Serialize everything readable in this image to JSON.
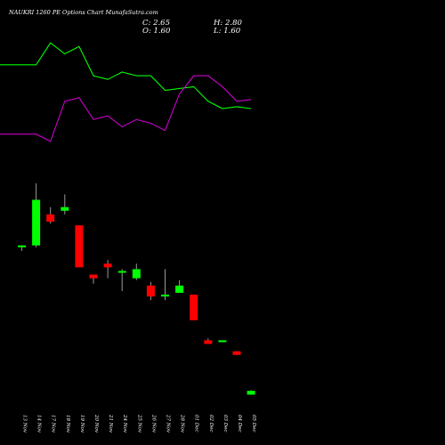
{
  "chart_data": {
    "type": "candlestick",
    "title": "NAUKRI 1260  PE Options  Chart MunafaSutra.com",
    "ohlc_readout": {
      "C": "C: 2.65",
      "O": "O: 1.60",
      "H": "H: 2.80",
      "L": "L: 1.60"
    },
    "categories": [
      "13 Nov",
      "14 Nov",
      "17 Nov",
      "18 Nov",
      "19 Nov",
      "20 Nov",
      "21 Nov",
      "24 Nov",
      "25 Nov",
      "26 Nov",
      "27 Nov",
      "28 Nov",
      "01 Dec",
      "02 Dec",
      "03 Dec",
      "04 Dec",
      "05 Dec"
    ],
    "candles": [
      {
        "o": 42.0,
        "h": 42.5,
        "l": 41.0,
        "c": 42.5
      },
      {
        "o": 42.5,
        "h": 59.5,
        "l": 42.0,
        "c": 55.0
      },
      {
        "o": 51.0,
        "h": 53.0,
        "l": 48.5,
        "c": 49.0
      },
      {
        "o": 52.0,
        "h": 56.5,
        "l": 51.0,
        "c": 53.0
      },
      {
        "o": 48.0,
        "h": 48.0,
        "l": 36.5,
        "c": 36.5
      },
      {
        "o": 34.5,
        "h": 34.5,
        "l": 32.0,
        "c": 33.5
      },
      {
        "o": 37.5,
        "h": 38.5,
        "l": 33.5,
        "c": 36.5
      },
      {
        "o": 35.0,
        "h": 36.0,
        "l": 30.0,
        "c": 35.5
      },
      {
        "o": 33.5,
        "h": 37.5,
        "l": 33.0,
        "c": 36.0
      },
      {
        "o": 31.5,
        "h": 32.5,
        "l": 27.5,
        "c": 28.5
      },
      {
        "o": 28.5,
        "h": 36.0,
        "l": 27.5,
        "c": 29.0
      },
      {
        "o": 29.5,
        "h": 33.0,
        "l": 29.5,
        "c": 31.5
      },
      {
        "o": 29.0,
        "h": 29.0,
        "l": 22.0,
        "c": 22.0
      },
      {
        "o": 16.5,
        "h": 17.0,
        "l": 15.5,
        "c": 15.5
      },
      {
        "o": 16.0,
        "h": 16.5,
        "l": 16.0,
        "c": 16.5
      },
      {
        "o": 13.5,
        "h": 13.5,
        "l": 12.5,
        "c": 12.5
      },
      {
        "o": 1.6,
        "h": 2.8,
        "l": 1.6,
        "c": 2.65
      }
    ],
    "lines": [
      {
        "color": "#00ff00",
        "values": [
          92,
          92,
          98,
          95,
          97,
          89,
          88,
          90,
          89,
          89,
          85,
          85.5,
          86,
          82,
          80,
          80.5,
          80
        ]
      },
      {
        "color": "#cc00cc",
        "values": [
          73,
          73,
          71,
          82,
          83,
          77,
          78,
          75,
          77,
          76,
          74,
          84,
          89,
          89,
          86,
          82,
          82.5
        ]
      }
    ],
    "ylim": [
      0,
      100
    ],
    "up_color": "#00ff00",
    "down_color": "#ff0000",
    "wick_color": "#999999"
  }
}
